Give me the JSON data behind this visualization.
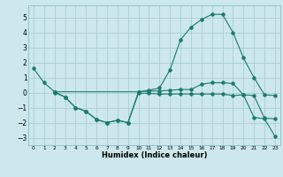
{
  "background_color": "#cce8ec",
  "grid_color": "#aacdd4",
  "line_color": "#1a7a6e",
  "xlabel": "Humidex (Indice chaleur)",
  "xlim": [
    -0.5,
    23.5
  ],
  "ylim": [
    -3.5,
    5.8
  ],
  "yticks": [
    -3,
    -2,
    -1,
    0,
    1,
    2,
    3,
    4,
    5
  ],
  "xticks": [
    0,
    1,
    2,
    3,
    4,
    5,
    6,
    7,
    8,
    9,
    10,
    11,
    12,
    13,
    14,
    15,
    16,
    17,
    18,
    19,
    20,
    21,
    22,
    23
  ],
  "curve1_x": [
    0,
    1,
    2,
    10,
    11,
    12,
    13,
    14,
    15,
    16,
    17,
    18,
    19,
    20,
    21,
    22,
    23
  ],
  "curve1_y": [
    1.6,
    0.65,
    0.05,
    0.05,
    0.15,
    0.3,
    1.5,
    3.5,
    4.35,
    4.85,
    5.2,
    5.2,
    4.0,
    2.3,
    1.0,
    -0.15,
    -0.2
  ],
  "curve2_x": [
    2,
    3,
    4,
    5,
    6,
    7,
    8,
    9,
    10,
    11,
    12,
    13,
    14,
    15,
    16,
    17,
    18,
    19,
    20,
    21,
    22,
    23
  ],
  "curve2_y": [
    0.05,
    -0.3,
    -1.0,
    -1.25,
    -1.8,
    -2.0,
    -1.85,
    -2.0,
    0.05,
    0.1,
    0.1,
    0.15,
    0.2,
    0.2,
    0.55,
    0.65,
    0.65,
    0.6,
    -0.15,
    -0.2,
    -1.7,
    -1.75
  ],
  "curve3_x": [
    2,
    3,
    4,
    5,
    6,
    7,
    8,
    9,
    10,
    11,
    12,
    13,
    14,
    15,
    16,
    17,
    18,
    19,
    20,
    21,
    22,
    23
  ],
  "curve3_y": [
    0.0,
    -0.3,
    -1.0,
    -1.25,
    -1.8,
    -2.0,
    -1.85,
    -2.0,
    -0.05,
    -0.05,
    -0.1,
    -0.1,
    -0.1,
    -0.1,
    -0.1,
    -0.1,
    -0.1,
    -0.2,
    -0.15,
    -1.65,
    -1.75,
    -2.9
  ]
}
